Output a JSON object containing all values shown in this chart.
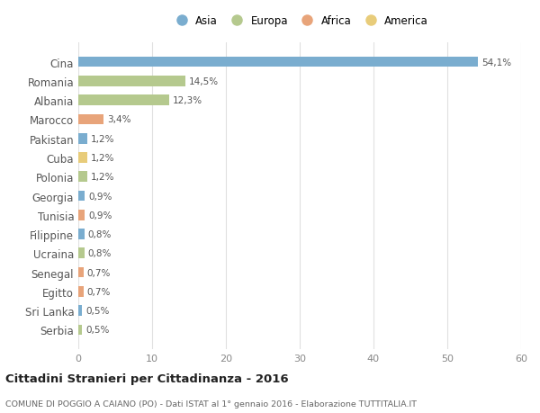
{
  "countries": [
    "Cina",
    "Romania",
    "Albania",
    "Marocco",
    "Pakistan",
    "Cuba",
    "Polonia",
    "Georgia",
    "Tunisia",
    "Filippine",
    "Ucraina",
    "Senegal",
    "Egitto",
    "Sri Lanka",
    "Serbia"
  ],
  "values": [
    54.1,
    14.5,
    12.3,
    3.4,
    1.2,
    1.2,
    1.2,
    0.9,
    0.9,
    0.8,
    0.8,
    0.7,
    0.7,
    0.5,
    0.5
  ],
  "labels": [
    "54,1%",
    "14,5%",
    "12,3%",
    "3,4%",
    "1,2%",
    "1,2%",
    "1,2%",
    "0,9%",
    "0,9%",
    "0,8%",
    "0,8%",
    "0,7%",
    "0,7%",
    "0,5%",
    "0,5%"
  ],
  "continents": [
    "Asia",
    "Europa",
    "Europa",
    "Africa",
    "Asia",
    "America",
    "Europa",
    "Asia",
    "Africa",
    "Asia",
    "Europa",
    "Africa",
    "Africa",
    "Asia",
    "Europa"
  ],
  "continent_colors": {
    "Asia": "#7aadcf",
    "Europa": "#b5c98e",
    "Africa": "#e8a47a",
    "America": "#e8cc7a"
  },
  "legend_order": [
    "Asia",
    "Europa",
    "Africa",
    "America"
  ],
  "xlim": [
    0,
    60
  ],
  "xticks": [
    0,
    10,
    20,
    30,
    40,
    50,
    60
  ],
  "title_main": "Cittadini Stranieri per Cittadinanza - 2016",
  "title_sub": "COMUNE DI POGGIO A CAIANO (PO) - Dati ISTAT al 1° gennaio 2016 - Elaborazione TUTTITALIA.IT",
  "background_color": "#ffffff",
  "bar_height": 0.55,
  "label_fontsize": 7.5,
  "ytick_fontsize": 8.5,
  "xtick_fontsize": 8,
  "grid_color": "#e0e0e0"
}
